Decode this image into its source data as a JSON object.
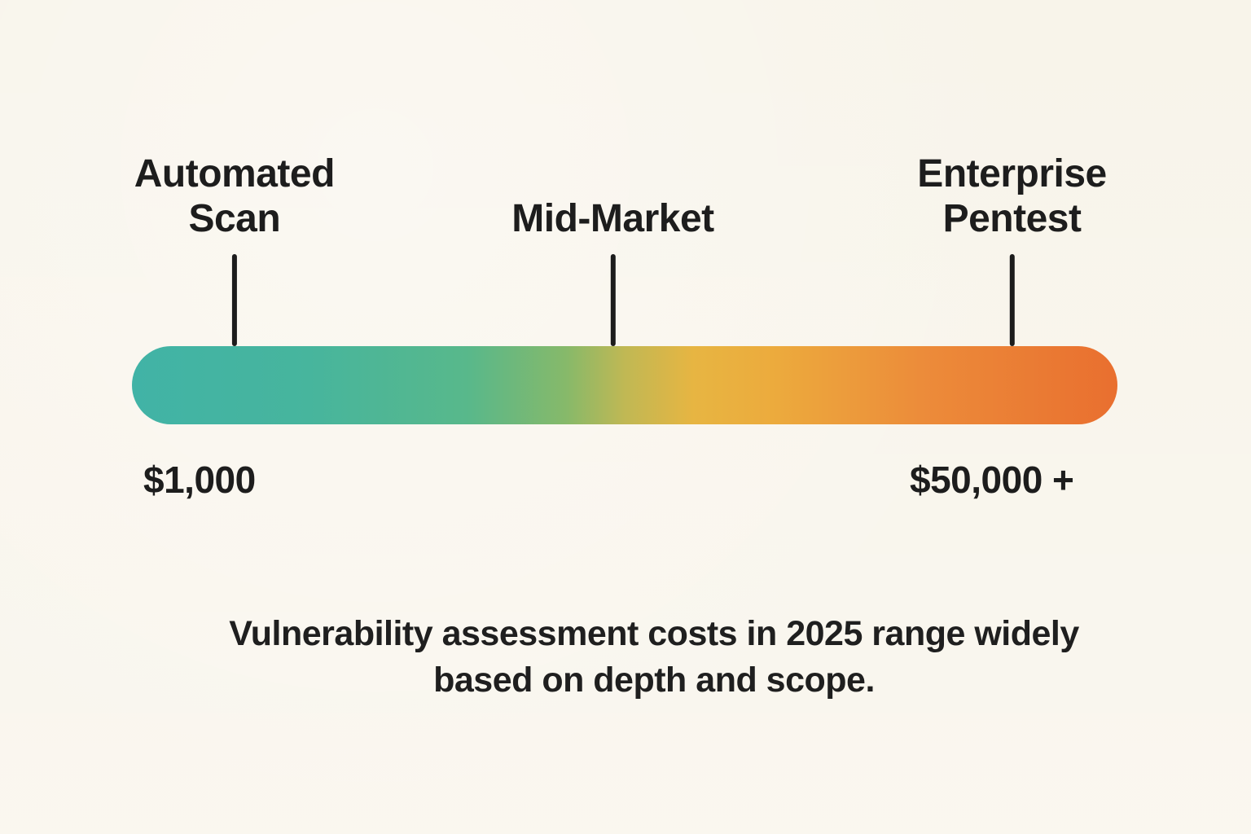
{
  "page": {
    "background_color": "#f8f4ea",
    "text_color": "#1d1d1d"
  },
  "chart_data": {
    "type": "scale",
    "description": "Horizontal gradient cost scale (pill bar) with three tick markers",
    "caption": "Vulnerability assessment costs in 2025 range widely\nbased on depth and scope.",
    "min_value_label": "$1,000",
    "max_value_label": "$50,000 +",
    "markers": [
      {
        "label": "Automated\nScan",
        "position_pct": 10.4,
        "value": "$1,000"
      },
      {
        "label": "Mid-Market",
        "position_pct": 48.8,
        "value": ""
      },
      {
        "label": "Enterprise\nPentest",
        "position_pct": 89.3,
        "value": "$50,000 +"
      }
    ],
    "gradient_stops": [
      {
        "color": "#41b3a6",
        "pct": 0
      },
      {
        "color": "#47b59d",
        "pct": 18
      },
      {
        "color": "#58b88b",
        "pct": 34
      },
      {
        "color": "#86b96a",
        "pct": 44
      },
      {
        "color": "#c0b854",
        "pct": 50
      },
      {
        "color": "#e7b542",
        "pct": 57
      },
      {
        "color": "#ecab3d",
        "pct": 65
      },
      {
        "color": "#ec8c3a",
        "pct": 80
      },
      {
        "color": "#e96f2f",
        "pct": 100
      }
    ],
    "tick_color": "#1c1c1c",
    "legend": "none",
    "grid": "off"
  }
}
